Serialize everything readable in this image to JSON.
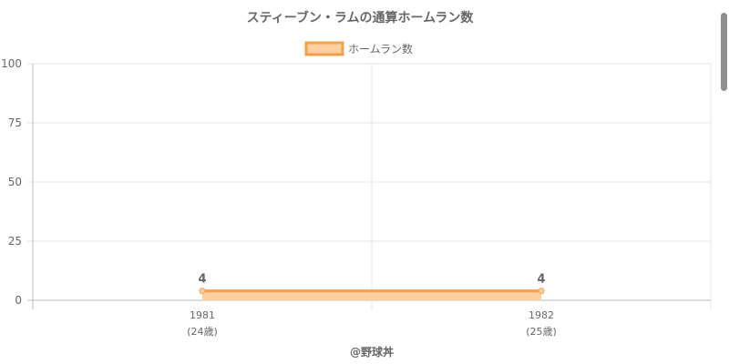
{
  "chart_data": {
    "type": "area",
    "title": "スティーブン・ラムの通算ホームラン数",
    "categories": [
      "1981",
      "1982"
    ],
    "category_sublabels": [
      "(24歳)",
      "(25歳)"
    ],
    "series": [
      {
        "name": "ホームラン数",
        "values": [
          4,
          4
        ]
      }
    ],
    "ylim": [
      0,
      100
    ],
    "yticks": [
      0,
      25,
      50,
      75,
      100
    ],
    "grid": true,
    "legend_position": "top-center",
    "colors": {
      "line": "#f7a04b",
      "fill": "#ffcf9f",
      "grid": "#e6e6e6",
      "axis": "#bdbdbd",
      "text": "#666666"
    }
  },
  "footer": {
    "credit": "@野球丼"
  }
}
